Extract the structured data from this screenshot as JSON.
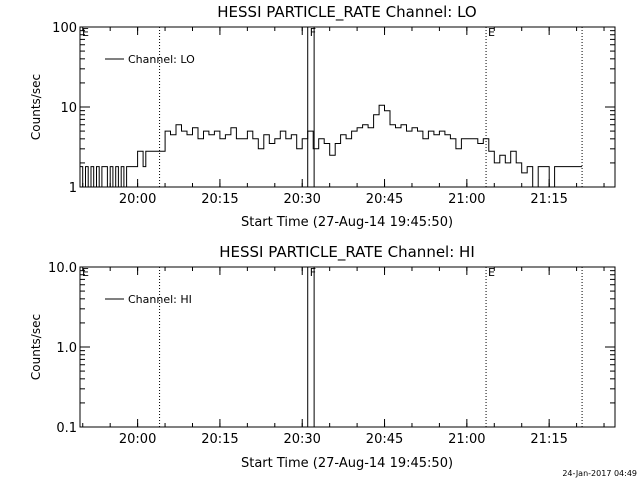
{
  "footer": {
    "timestamp": "24-Jan-2017 04:49"
  },
  "chart_data": [
    {
      "type": "line",
      "title": "HESSI PARTICLE_RATE Channel: LO",
      "xlabel": "Start Time (27-Aug-14 19:45:50)",
      "ylabel": "Counts/sec",
      "y_scale": "log",
      "xlim": [
        "19:49:30",
        "21:27:00"
      ],
      "ylim": [
        1,
        100
      ],
      "x_tick_labels": [
        "20:00",
        "20:15",
        "20:30",
        "20:45",
        "21:00",
        "21:15"
      ],
      "y_tick_labels": [
        "1",
        "10",
        "100"
      ],
      "legend": {
        "position": "top-left",
        "entries": [
          "Channel: LO"
        ]
      },
      "markers": [
        {
          "label": "E",
          "time": "19:49:30",
          "style": "dotted"
        },
        {
          "label": "",
          "time": "20:04:00",
          "style": "dotted"
        },
        {
          "label": "F",
          "time": "20:31:00",
          "style": "solid"
        },
        {
          "label": "",
          "time": "20:32:10",
          "style": "solid"
        },
        {
          "label": "E",
          "time": "21:03:30",
          "style": "dotted"
        },
        {
          "label": "",
          "time": "21:21:00",
          "style": "dotted"
        }
      ],
      "series": [
        {
          "name": "Channel: LO",
          "x": [
            "19:49:30",
            "19:50:00",
            "19:50:30",
            "19:51:00",
            "19:51:30",
            "19:52:00",
            "19:52:30",
            "19:53:00",
            "19:53:30",
            "19:54:00",
            "19:54:30",
            "19:55:00",
            "19:55:30",
            "19:56:00",
            "19:56:30",
            "19:57:00",
            "19:57:30",
            "19:58:00",
            "19:58:30",
            "19:59:00",
            "19:59:30",
            "20:00:00",
            "20:00:30",
            "20:01:00",
            "20:01:30",
            "20:02:00",
            "20:02:30",
            "20:03:00",
            "20:03:30",
            "20:04:00",
            "20:05:00",
            "20:06:00",
            "20:07:00",
            "20:08:00",
            "20:09:00",
            "20:10:00",
            "20:11:00",
            "20:12:00",
            "20:13:00",
            "20:14:00",
            "20:15:00",
            "20:16:00",
            "20:17:00",
            "20:18:00",
            "20:19:00",
            "20:20:00",
            "20:21:00",
            "20:22:00",
            "20:23:00",
            "20:24:00",
            "20:25:00",
            "20:26:00",
            "20:27:00",
            "20:28:00",
            "20:29:00",
            "20:30:00",
            "20:31:00",
            "20:32:00",
            "20:33:00",
            "20:34:00",
            "20:35:00",
            "20:36:00",
            "20:37:00",
            "20:38:00",
            "20:39:00",
            "20:40:00",
            "20:41:00",
            "20:42:00",
            "20:43:00",
            "20:44:00",
            "20:45:00",
            "20:46:00",
            "20:47:00",
            "20:48:00",
            "20:49:00",
            "20:50:00",
            "20:51:00",
            "20:52:00",
            "20:53:00",
            "20:54:00",
            "20:55:00",
            "20:56:00",
            "20:57:00",
            "20:58:00",
            "20:59:00",
            "21:00:00",
            "21:01:00",
            "21:02:00",
            "21:03:00",
            "21:04:00",
            "21:05:00",
            "21:06:00",
            "21:07:00",
            "21:08:00",
            "21:09:00",
            "21:10:00",
            "21:11:00",
            "21:12:00",
            "21:13:00",
            "21:14:00",
            "21:15:00",
            "21:16:00",
            "21:17:00",
            "21:18:00",
            "21:19:00",
            "21:20:00",
            "21:21:00"
          ],
          "y": [
            1.8,
            1,
            1.8,
            1,
            1.8,
            1,
            1.8,
            1,
            1.8,
            1.8,
            1,
            1.8,
            1,
            1.8,
            1,
            1.8,
            1,
            1.8,
            1.8,
            1.8,
            1.8,
            2.8,
            2.8,
            1.8,
            2.8,
            2.8,
            2.8,
            2.8,
            2.8,
            2.8,
            5,
            4.5,
            6,
            5,
            4.5,
            5.5,
            4,
            5,
            4.5,
            5,
            4,
            4.5,
            5.5,
            4,
            4,
            5,
            4,
            3,
            4.5,
            3.5,
            4,
            5,
            4,
            4.5,
            3,
            4,
            5,
            3,
            4,
            3.5,
            2.5,
            3.5,
            4.5,
            4,
            5,
            5.5,
            6,
            5.5,
            8,
            10.5,
            9,
            6,
            5.5,
            6,
            5,
            5.5,
            5,
            4,
            5,
            4.5,
            5,
            4.5,
            4,
            3,
            4,
            4,
            4,
            3.5,
            4,
            2.8,
            2,
            2.5,
            2,
            2.8,
            2,
            1.5,
            1.8,
            1,
            1.8,
            1.8,
            1,
            1.8,
            1.8,
            1.8,
            1.8,
            1.8,
            1.8
          ]
        }
      ]
    },
    {
      "type": "line",
      "title": "HESSI PARTICLE_RATE Channel: HI",
      "xlabel": "Start Time (27-Aug-14 19:45:50)",
      "ylabel": "Counts/sec",
      "y_scale": "log",
      "xlim": [
        "19:49:30",
        "21:27:00"
      ],
      "ylim": [
        0.1,
        10
      ],
      "x_tick_labels": [
        "20:00",
        "20:15",
        "20:30",
        "20:45",
        "21:00",
        "21:15"
      ],
      "y_tick_labels": [
        "0.1",
        "1.0",
        "10.0"
      ],
      "legend": {
        "position": "top-left",
        "entries": [
          "Channel: HI"
        ]
      },
      "markers": [
        {
          "label": "E",
          "time": "19:49:30",
          "style": "dotted"
        },
        {
          "label": "",
          "time": "20:04:00",
          "style": "dotted"
        },
        {
          "label": "F",
          "time": "20:31:00",
          "style": "solid"
        },
        {
          "label": "",
          "time": "20:32:10",
          "style": "solid"
        },
        {
          "label": "E",
          "time": "21:03:30",
          "style": "dotted"
        },
        {
          "label": "",
          "time": "21:21:00",
          "style": "dotted"
        }
      ],
      "series": [
        {
          "name": "Channel: HI",
          "x": [],
          "y": []
        }
      ]
    }
  ]
}
